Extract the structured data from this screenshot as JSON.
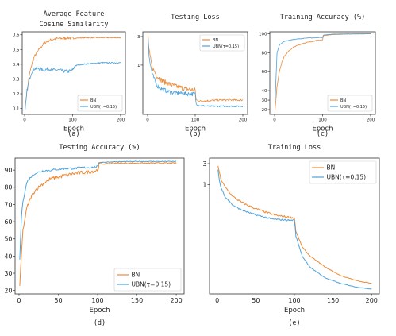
{
  "figure": {
    "panels": [
      {
        "id": "a",
        "title_lines": [
          "Average Feature",
          "Cosine Similarity"
        ],
        "xlabel": "Epoch",
        "caption": "(a)",
        "xlim": [
          -5,
          210
        ],
        "ylim": [
          0.06,
          0.62
        ],
        "xticks": [
          {
            "v": 0,
            "label": "0"
          },
          {
            "v": 100,
            "label": "100"
          },
          {
            "v": 200,
            "label": "200"
          }
        ],
        "yticks": [
          {
            "v": 0.1,
            "label": "0.1"
          },
          {
            "v": 0.2,
            "label": "0.2"
          },
          {
            "v": 0.3,
            "label": "0.3"
          },
          {
            "v": 0.4,
            "label": "0.4"
          },
          {
            "v": 0.5,
            "label": "0.5"
          },
          {
            "v": 0.6,
            "label": "0.6"
          }
        ],
        "legend": [
          "BN",
          "UBN(τ=0.15)"
        ]
      },
      {
        "id": "b",
        "title_lines": [
          "Testing Loss"
        ],
        "xlabel": "Epoch",
        "caption": "(b)",
        "xlim": [
          -10,
          210
        ],
        "ylim": [
          0.15,
          3.6
        ],
        "scale": "log",
        "xticks": [
          {
            "v": 0,
            "label": "0"
          },
          {
            "v": 100,
            "label": "100"
          },
          {
            "v": 200,
            "label": "200"
          }
        ],
        "yticks": [
          {
            "v": 3,
            "label": "3"
          },
          {
            "v": 1,
            "label": "1"
          }
        ],
        "legend": [
          "BN",
          "UBN(τ=0.15)"
        ]
      },
      {
        "id": "c",
        "title_lines": [
          "Training Accuracy (%)"
        ],
        "xlabel": "Epoch",
        "caption": "(c)",
        "xlim": [
          -10,
          210
        ],
        "ylim": [
          15,
          102
        ],
        "xticks": [
          {
            "v": 0,
            "label": "0"
          },
          {
            "v": 100,
            "label": "100"
          },
          {
            "v": 200,
            "label": "200"
          }
        ],
        "yticks": [
          {
            "v": 20,
            "label": "20"
          },
          {
            "v": 30,
            "label": "30"
          },
          {
            "v": 40,
            "label": "40"
          },
          {
            "v": 60,
            "label": "60"
          },
          {
            "v": 80,
            "label": "80"
          },
          {
            "v": 100,
            "label": "100"
          }
        ],
        "legend": [
          "BN",
          "UBN(τ=0.15)"
        ]
      },
      {
        "id": "d",
        "title_lines": [
          "Testing Accuracy (%)"
        ],
        "xlabel": "Epoch",
        "caption": "(d)",
        "xlim": [
          -5,
          210
        ],
        "ylim": [
          18,
          97
        ],
        "xticks": [
          {
            "v": 0,
            "label": "0"
          },
          {
            "v": 50,
            "label": "50"
          },
          {
            "v": 100,
            "label": "100"
          },
          {
            "v": 150,
            "label": "150"
          },
          {
            "v": 200,
            "label": "200"
          }
        ],
        "yticks": [
          {
            "v": 20,
            "label": "20"
          },
          {
            "v": 30,
            "label": "30"
          },
          {
            "v": 40,
            "label": "40"
          },
          {
            "v": 50,
            "label": "50"
          },
          {
            "v": 60,
            "label": "60"
          },
          {
            "v": 70,
            "label": "70"
          },
          {
            "v": 80,
            "label": "80"
          },
          {
            "v": 90,
            "label": "90"
          }
        ],
        "legend": [
          "BN",
          "UBN(τ=0.15)"
        ]
      },
      {
        "id": "e",
        "title_lines": [
          "Training Loss"
        ],
        "xlabel": "Epoch",
        "caption": "(e)",
        "xlim": [
          -10,
          210
        ],
        "ylim": [
          0.0035,
          4.0
        ],
        "scale": "log",
        "xticks": [
          {
            "v": 0,
            "label": "0"
          },
          {
            "v": 50,
            "label": "50"
          },
          {
            "v": 100,
            "label": "100"
          },
          {
            "v": 150,
            "label": "150"
          },
          {
            "v": 200,
            "label": "200"
          }
        ],
        "yticks": [
          {
            "v": 3,
            "label": "3"
          },
          {
            "v": 1,
            "label": "1"
          }
        ],
        "legend": [
          "BN",
          "UBN(τ=0.15)"
        ]
      }
    ]
  },
  "colors": {
    "bn": "#ee8a34",
    "ubn": "#4da3dd",
    "axis": "#333333"
  },
  "chart_data": [
    {
      "type": "line",
      "title": "Average Feature Cosine Similarity",
      "xlabel": "Epoch",
      "ylabel": "",
      "xlim": [
        -5,
        210
      ],
      "ylim": [
        0.06,
        0.62
      ],
      "legend_position": "bottom-right",
      "series": [
        {
          "name": "BN",
          "x": [
            1,
            5,
            10,
            15,
            20,
            30,
            40,
            50,
            60,
            70,
            80,
            90,
            100,
            120,
            140,
            160,
            180,
            200
          ],
          "y": [
            0.1,
            0.22,
            0.33,
            0.4,
            0.45,
            0.5,
            0.54,
            0.56,
            0.57,
            0.575,
            0.575,
            0.58,
            0.575,
            0.58,
            0.58,
            0.58,
            0.58,
            0.58
          ]
        },
        {
          "name": "UBN(τ=0.15)",
          "x": [
            1,
            5,
            10,
            15,
            20,
            30,
            40,
            50,
            60,
            70,
            80,
            90,
            100,
            105,
            120,
            140,
            160,
            180,
            200
          ],
          "y": [
            0.08,
            0.22,
            0.3,
            0.35,
            0.37,
            0.37,
            0.36,
            0.37,
            0.36,
            0.36,
            0.355,
            0.35,
            0.36,
            0.39,
            0.4,
            0.405,
            0.41,
            0.41,
            0.41
          ]
        }
      ]
    },
    {
      "type": "line",
      "title": "Testing Loss",
      "xlabel": "Epoch",
      "ylabel": "",
      "xlim": [
        -10,
        210
      ],
      "ylim": [
        0.15,
        3.6
      ],
      "yscale": "log",
      "legend_position": "top-right",
      "series": [
        {
          "name": "BN",
          "x": [
            1,
            3,
            5,
            10,
            20,
            30,
            40,
            50,
            60,
            70,
            80,
            90,
            100,
            102,
            110,
            130,
            150,
            170,
            200
          ],
          "y": [
            3.0,
            1.8,
            1.4,
            0.9,
            0.65,
            0.55,
            0.5,
            0.47,
            0.44,
            0.42,
            0.4,
            0.39,
            0.38,
            0.26,
            0.25,
            0.255,
            0.26,
            0.26,
            0.26
          ]
        },
        {
          "name": "UBN(τ=0.15)",
          "x": [
            1,
            3,
            5,
            10,
            20,
            30,
            40,
            50,
            60,
            70,
            80,
            90,
            100,
            102,
            110,
            130,
            150,
            170,
            200
          ],
          "y": [
            2.8,
            1.5,
            1.1,
            0.7,
            0.45,
            0.4,
            0.37,
            0.35,
            0.34,
            0.34,
            0.33,
            0.33,
            0.33,
            0.22,
            0.21,
            0.205,
            0.205,
            0.205,
            0.205
          ]
        }
      ]
    },
    {
      "type": "line",
      "title": "Training Accuracy (%)",
      "xlabel": "Epoch",
      "ylabel": "",
      "xlim": [
        -10,
        210
      ],
      "ylim": [
        15,
        102
      ],
      "legend_position": "bottom-right",
      "series": [
        {
          "name": "BN",
          "x": [
            1,
            5,
            10,
            15,
            20,
            30,
            40,
            50,
            60,
            70,
            80,
            90,
            100,
            102,
            120,
            150,
            200
          ],
          "y": [
            20,
            45,
            60,
            70,
            76,
            82,
            86,
            88,
            90,
            91,
            92,
            93,
            93.5,
            98,
            99,
            99.5,
            99.8
          ]
        },
        {
          "name": "UBN(τ=0.15)",
          "x": [
            1,
            5,
            10,
            15,
            20,
            30,
            40,
            50,
            60,
            70,
            80,
            90,
            100,
            102,
            120,
            150,
            200
          ],
          "y": [
            30,
            80,
            88,
            90,
            92,
            93,
            94,
            94.5,
            95,
            95.5,
            95.5,
            96,
            96,
            98.5,
            99.5,
            99.8,
            100
          ]
        }
      ]
    },
    {
      "type": "line",
      "title": "Testing Accuracy (%)",
      "xlabel": "Epoch",
      "ylabel": "",
      "xlim": [
        -5,
        210
      ],
      "ylim": [
        18,
        97
      ],
      "legend_position": "bottom-right",
      "series": [
        {
          "name": "BN",
          "x": [
            1,
            3,
            5,
            10,
            15,
            20,
            30,
            40,
            50,
            60,
            70,
            80,
            90,
            100,
            102,
            120,
            150,
            200
          ],
          "y": [
            22,
            40,
            55,
            68,
            74,
            78,
            82,
            85,
            86,
            87,
            88,
            88.5,
            89,
            90,
            93.5,
            94,
            94,
            94
          ]
        },
        {
          "name": "UBN(τ=0.15)",
          "x": [
            1,
            3,
            5,
            10,
            15,
            20,
            30,
            40,
            50,
            60,
            70,
            80,
            90,
            100,
            102,
            120,
            150,
            200
          ],
          "y": [
            38,
            62,
            72,
            83,
            86,
            88,
            89.5,
            90,
            90.5,
            91,
            91,
            91.5,
            91.5,
            92,
            94.5,
            94.8,
            95,
            95
          ]
        }
      ]
    },
    {
      "type": "line",
      "title": "Training Loss",
      "xlabel": "Epoch",
      "ylabel": "",
      "xlim": [
        -10,
        210
      ],
      "ylim": [
        0.0035,
        4.0
      ],
      "yscale": "log",
      "legend_position": "top-right",
      "series": [
        {
          "name": "BN",
          "x": [
            1,
            3,
            5,
            10,
            20,
            30,
            40,
            50,
            60,
            70,
            80,
            90,
            100,
            102,
            110,
            120,
            140,
            160,
            180,
            200
          ],
          "y": [
            2.7,
            1.8,
            1.3,
            0.9,
            0.55,
            0.42,
            0.34,
            0.29,
            0.25,
            0.22,
            0.2,
            0.19,
            0.18,
            0.09,
            0.04,
            0.025,
            0.014,
            0.009,
            0.007,
            0.006
          ]
        },
        {
          "name": "UBN(τ=0.15)",
          "x": [
            1,
            3,
            5,
            10,
            20,
            30,
            40,
            50,
            60,
            70,
            80,
            90,
            100,
            102,
            110,
            120,
            140,
            160,
            180,
            200
          ],
          "y": [
            2.2,
            1.2,
            0.85,
            0.55,
            0.35,
            0.28,
            0.24,
            0.21,
            0.19,
            0.17,
            0.165,
            0.16,
            0.16,
            0.07,
            0.025,
            0.014,
            0.008,
            0.006,
            0.005,
            0.0045
          ]
        }
      ]
    }
  ]
}
